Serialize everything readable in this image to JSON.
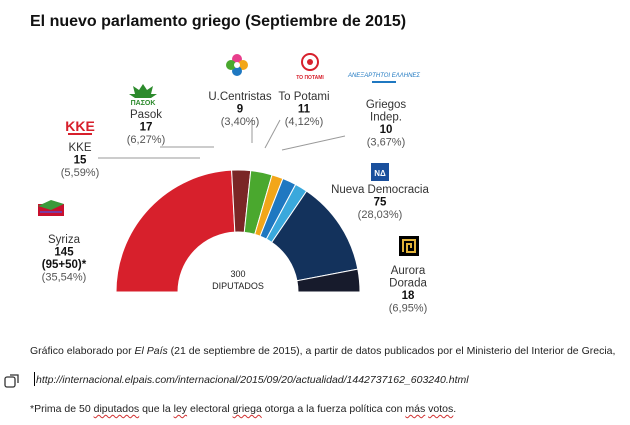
{
  "title": "El nuevo parlamento griego (Septiembre de 2015)",
  "chart_data": {
    "type": "pie",
    "variant": "semicircle-parliament",
    "center_text": [
      "300",
      "DIPUTADOS"
    ],
    "total_seats": 300,
    "series": [
      {
        "name": "Syriza",
        "seats": 145,
        "seats_label": "145",
        "extra": "(95+50)*",
        "pct": "(35,54%)",
        "color": "#d7202c"
      },
      {
        "name": "KKE",
        "seats": 15,
        "seats_label": "15",
        "pct": "(5,59%)",
        "color": "#7a2626"
      },
      {
        "name": "Pasok",
        "seats": 17,
        "seats_label": "17",
        "pct": "(6,27%)",
        "color": "#4aa82e"
      },
      {
        "name": "U.Centristas",
        "seats": 9,
        "seats_label": "9",
        "pct": "(3,40%)",
        "color": "#f2a619"
      },
      {
        "name": "To Potami",
        "seats": 11,
        "seats_label": "11",
        "pct": "(4,12%)",
        "color": "#1f78c1"
      },
      {
        "name": "Griegos Indep.",
        "name_lines": [
          "Griegos",
          "Indep."
        ],
        "seats": 10,
        "seats_label": "10",
        "pct": "(3,67%)",
        "color": "#3aa8dc"
      },
      {
        "name": "Nueva Democracia",
        "seats": 75,
        "seats_label": "75",
        "pct": "(28,03%)",
        "color": "#13325c"
      },
      {
        "name": "Aurora Dorada",
        "name_lines": [
          "Aurora",
          "Dorada"
        ],
        "seats": 18,
        "seats_label": "18",
        "pct": "(6,95%)",
        "color": "#171b2c"
      }
    ],
    "logos": {
      "syriza": "SYRIZA flag logo",
      "kke": "KKE",
      "pasok": "ΠΑΣΟΚ",
      "centristas": "centrists flower logo",
      "potami": "TO ΠΟΤΑΜΙ",
      "anel": "ΑΝΕΞΑΡΤΗΤΟΙ ΕΛΛΗΝΕΣ",
      "nd": "ΝΔ",
      "golden_dawn": "meander emblem"
    }
  },
  "notes": {
    "source_prefix": "Gráfico elaborado por ",
    "source_italic": "El País",
    "source_suffix": " (21 de septiembre de 2015), a partir de datos publicados por el Ministerio del Interior de Grecia,",
    "url": "http://internacional.elpais.com/internacional/2015/09/20/actualidad/1442737162_603240.html",
    "footnote_parts": [
      "*Prima de 50 ",
      "diputados",
      " que la ",
      "ley",
      " electoral ",
      "griega",
      " otorga a la fuerza política con ",
      "más",
      " ",
      "votos",
      "."
    ]
  },
  "ui": {
    "side_icon": "pen-handwriting-icon"
  }
}
